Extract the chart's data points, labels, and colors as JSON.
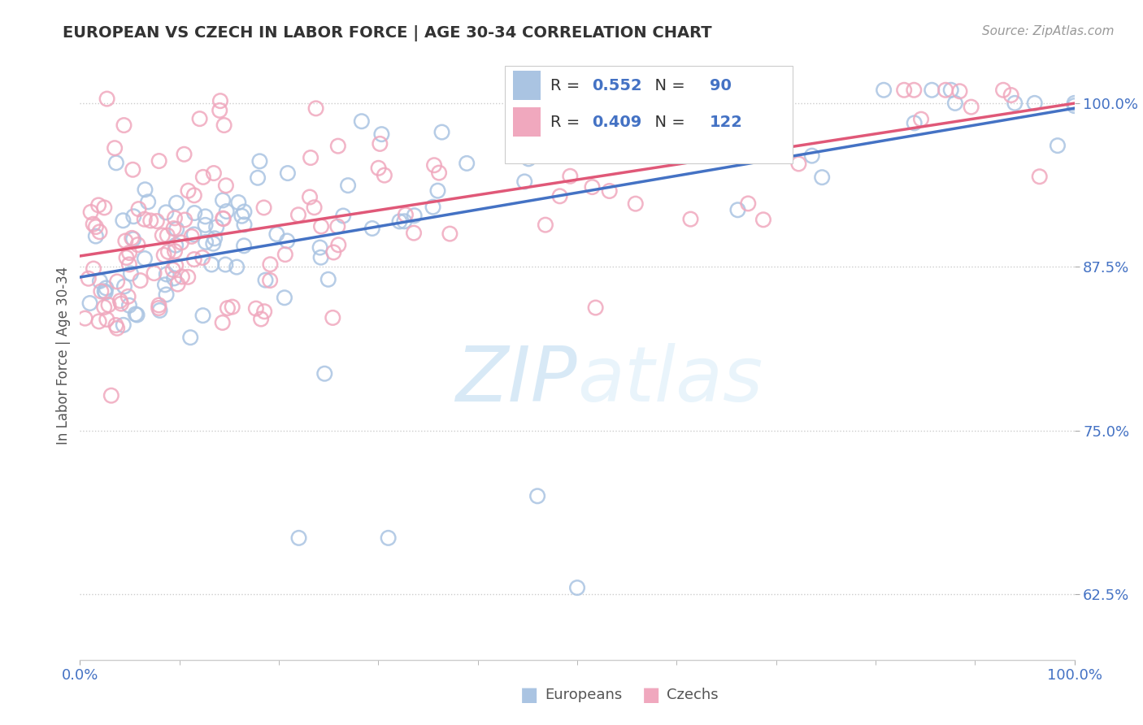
{
  "title": "EUROPEAN VS CZECH IN LABOR FORCE | AGE 30-34 CORRELATION CHART",
  "source": "Source: ZipAtlas.com",
  "ylabel": "In Labor Force | Age 30-34",
  "xlim": [
    0.0,
    1.0
  ],
  "ylim": [
    0.575,
    1.04
  ],
  "yticks": [
    0.625,
    0.75,
    0.875,
    1.0
  ],
  "ytick_labels": [
    "62.5%",
    "75.0%",
    "87.5%",
    "100.0%"
  ],
  "xtick_labels": [
    "0.0%",
    "100.0%"
  ],
  "european_R": 0.552,
  "european_N": 90,
  "czech_R": 0.409,
  "czech_N": 122,
  "european_color": "#aac4e2",
  "czech_color": "#f0a8be",
  "european_line_color": "#4472c4",
  "czech_line_color": "#e05878",
  "tick_color": "#4472c4",
  "watermark_color": "#cde4f5",
  "background_color": "#ffffff",
  "grid_color": "#cccccc",
  "legend_label_europeans": "Europeans",
  "legend_label_czechs": "Czechs"
}
